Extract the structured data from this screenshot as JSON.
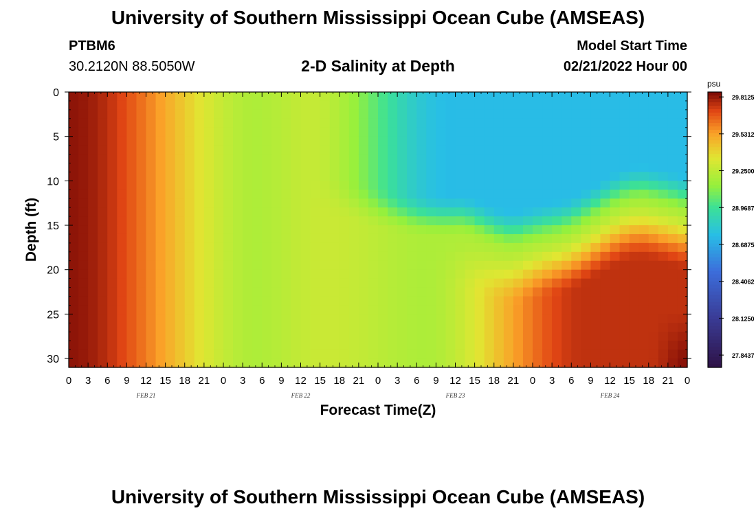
{
  "header": {
    "title": "University of Southern Mississippi Ocean Cube (AMSEAS)",
    "station": "PTBM6",
    "coords": "30.2120N  88.5050W",
    "subtitle": "2-D Salinity at Depth",
    "model_start_label": "Model Start Time",
    "model_start_value": "02/21/2022 Hour 00"
  },
  "footer": {
    "title": "University of Southern Mississippi Ocean Cube (AMSEAS)"
  },
  "chart_data": {
    "type": "heatmap",
    "xlabel": "Forecast Time(Z)",
    "ylabel": "Depth (ft)",
    "x_ticks": [
      "0",
      "3",
      "6",
      "9",
      "12",
      "15",
      "18",
      "21",
      "0",
      "3",
      "6",
      "9",
      "12",
      "15",
      "18",
      "21",
      "0",
      "3",
      "6",
      "9",
      "12",
      "15",
      "18",
      "21",
      "0",
      "3",
      "6",
      "9",
      "12",
      "15",
      "18",
      "21",
      "0"
    ],
    "x_day_labels": [
      "FEB 21",
      "FEB 22",
      "FEB 23",
      "FEB 24"
    ],
    "y_ticks": [
      0,
      5,
      10,
      15,
      20,
      25,
      30
    ],
    "ylim": [
      0,
      31
    ],
    "xlim_hours": [
      0,
      96
    ],
    "colorbar": {
      "unit": "psu",
      "min": 27.75,
      "max": 29.85,
      "labels": [
        "29.8125",
        "29.5312",
        "29.2500",
        "28.9687",
        "28.6875",
        "28.4062",
        "28.1250",
        "27.8437"
      ]
    },
    "notes": "Salinity field: high (~29.8) on Feb 21 early hours decreasing toward ~29.2 by Feb 21 late/Feb 22; freshening surface layer (~28.7-28.9) from Feb 22 15Z onward above ~10-15 ft; saltier water (~29.6-29.8) below ~15 ft on Feb 24."
  },
  "colors": {
    "frame": "#000000",
    "background": "#ffffff"
  }
}
